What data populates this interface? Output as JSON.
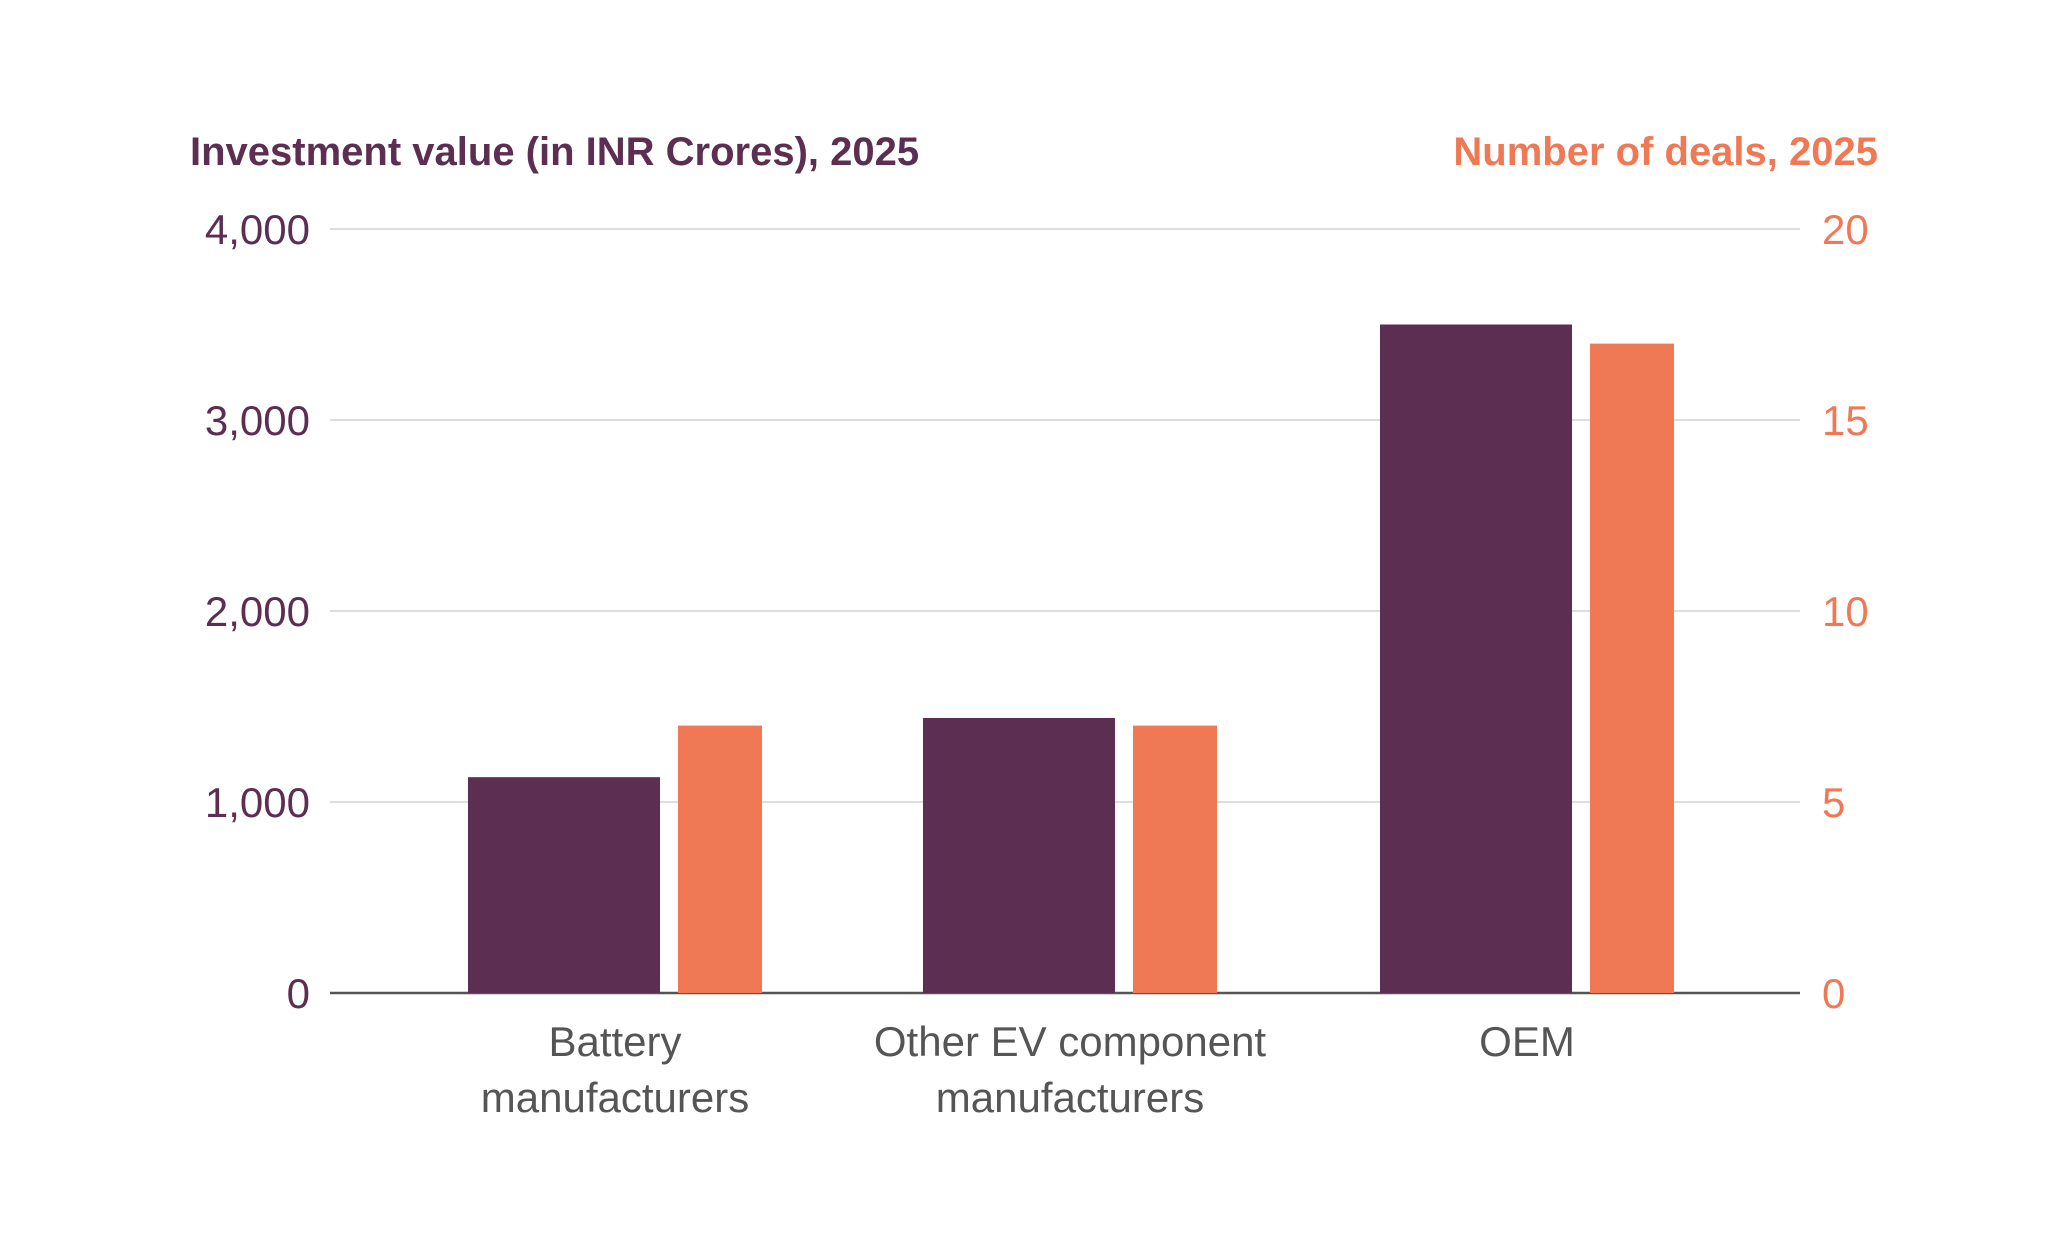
{
  "chart_data": {
    "type": "bar",
    "categories": [
      [
        "Battery",
        "manufacturers"
      ],
      [
        "Other EV component",
        "manufacturers"
      ],
      [
        "OEM"
      ]
    ],
    "series": [
      {
        "name": "Investment value (in INR Crores), 2025",
        "axis": "left",
        "color": "#5c2e51",
        "values": [
          1130,
          1440,
          3500
        ]
      },
      {
        "name": "Number of deals, 2025",
        "axis": "right",
        "color": "#f07955",
        "values": [
          7,
          7,
          17
        ]
      }
    ],
    "left_axis": {
      "title": "Investment value (in INR Crores), 2025",
      "range": [
        0,
        4000
      ],
      "ticks": [
        "0",
        "1,000",
        "2,000",
        "3,000",
        "4,000"
      ]
    },
    "right_axis": {
      "title": "Number of deals, 2025",
      "range": [
        0,
        20
      ],
      "ticks": [
        "0",
        "5",
        "10",
        "15",
        "20"
      ]
    },
    "grid": true,
    "legend": "none"
  }
}
